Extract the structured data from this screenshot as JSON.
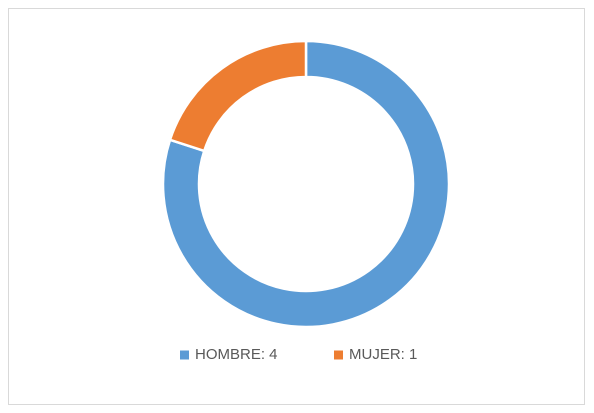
{
  "chart_data": {
    "type": "donut",
    "categories": [
      "HOMBRE: 4",
      "MUJER: 1"
    ],
    "values": [
      4,
      1
    ],
    "colors": [
      "#5b9bd5",
      "#ed7d31"
    ],
    "legend": "bottom"
  }
}
